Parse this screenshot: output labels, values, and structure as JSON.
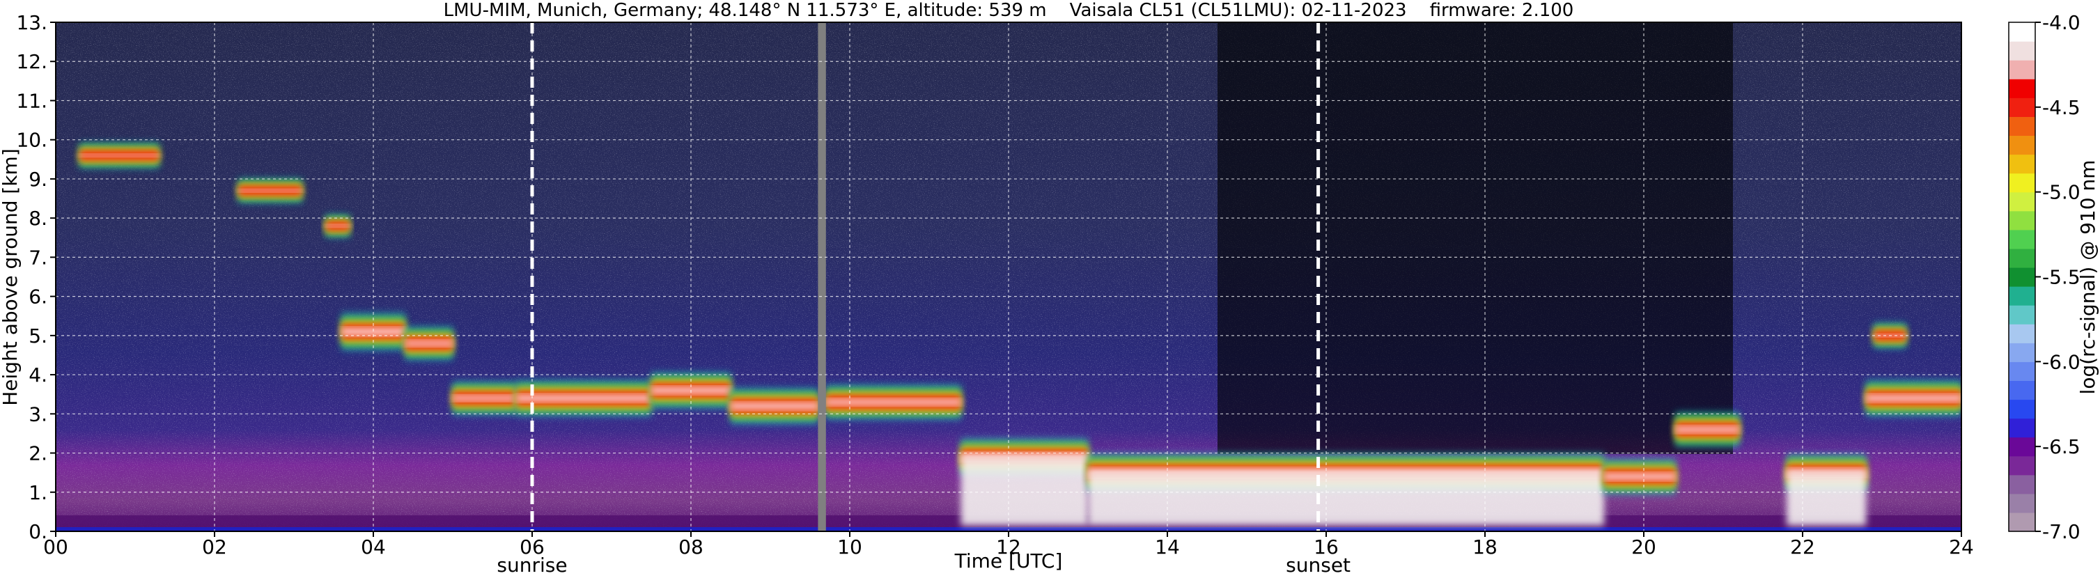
{
  "chart_data": {
    "type": "heatmap",
    "title": "LMU-MIM, Munich, Germany; 48.148° N 11.573° E, altitude: 539 m    Vaisala CL51 (CL51LMU): 02-11-2023    firmware: 2.100",
    "xlabel": "Time [UTC]",
    "ylabel": "Height above ground [km]",
    "xlim": [
      0,
      24
    ],
    "ylim": [
      0,
      13
    ],
    "x_ticks": [
      "00",
      "02",
      "04",
      "06",
      "08",
      "10",
      "12",
      "14",
      "16",
      "18",
      "20",
      "22",
      "24"
    ],
    "y_ticks": [
      "0.",
      "1.",
      "2.",
      "3.",
      "4.",
      "5.",
      "6.",
      "7.",
      "8.",
      "9.",
      "10.",
      "11.",
      "12.",
      "13."
    ],
    "grid": true,
    "colorbar": {
      "label": "log(rc-signal) @ 910 nm",
      "range": [
        -7.0,
        -4.0
      ],
      "ticks": [
        "-4.0",
        "-4.5",
        "-5.0",
        "-5.5",
        "-6.0",
        "-6.5",
        "-7.0"
      ],
      "colors": [
        "#b09ab0",
        "#9a80a8",
        "#8a60a0",
        "#7a2898",
        "#6a0898",
        "#3020d8",
        "#2848f0",
        "#4868f0",
        "#6888f0",
        "#88a8f0",
        "#a8c8f0",
        "#60c8c8",
        "#20b090",
        "#109030",
        "#30b040",
        "#50d050",
        "#90e040",
        "#d0f040",
        "#f0f020",
        "#f0c010",
        "#f09010",
        "#f06010",
        "#f02010",
        "#f00000",
        "#f0b0b0",
        "#f0e0e0",
        "#ffffff"
      ]
    },
    "annotations": [
      {
        "x": 6.0,
        "label": "sunrise"
      },
      {
        "x": 15.9,
        "label": "sunset"
      }
    ],
    "missing_data": {
      "x_start": 9.6,
      "x_end": 9.7
    },
    "cloud_layers": [
      {
        "t_start": 0.3,
        "t_end": 1.3,
        "height": 9.6,
        "intensity": 0.5
      },
      {
        "t_start": 2.3,
        "t_end": 3.1,
        "height": 8.7,
        "intensity": 0.45
      },
      {
        "t_start": 3.4,
        "t_end": 3.7,
        "height": 7.8,
        "intensity": 0.4
      },
      {
        "t_start": 3.6,
        "t_end": 4.4,
        "height": 5.1,
        "intensity": 0.95
      },
      {
        "t_start": 4.4,
        "t_end": 5.0,
        "height": 4.8,
        "intensity": 0.8
      },
      {
        "t_start": 5.0,
        "t_end": 5.8,
        "height": 3.4,
        "intensity": 0.8
      },
      {
        "t_start": 5.8,
        "t_end": 7.5,
        "height": 3.4,
        "intensity": 0.9
      },
      {
        "t_start": 7.5,
        "t_end": 8.5,
        "height": 3.6,
        "intensity": 0.9
      },
      {
        "t_start": 8.5,
        "t_end": 9.6,
        "height": 3.2,
        "intensity": 0.9
      },
      {
        "t_start": 9.7,
        "t_end": 11.4,
        "height": 3.3,
        "intensity": 0.85
      },
      {
        "t_start": 11.4,
        "t_end": 13.0,
        "height": 1.9,
        "intensity": 0.95
      },
      {
        "t_start": 13.0,
        "t_end": 19.5,
        "height": 1.5,
        "intensity": 1.0
      },
      {
        "t_start": 19.5,
        "t_end": 20.4,
        "height": 1.4,
        "intensity": 0.9
      },
      {
        "t_start": 20.4,
        "t_end": 21.2,
        "height": 2.6,
        "intensity": 0.85
      },
      {
        "t_start": 21.8,
        "t_end": 22.8,
        "height": 1.5,
        "intensity": 0.95
      },
      {
        "t_start": 22.8,
        "t_end": 24.0,
        "height": 3.4,
        "intensity": 0.9
      },
      {
        "t_start": 22.9,
        "t_end": 23.3,
        "height": 5.0,
        "intensity": 0.5
      }
    ]
  }
}
